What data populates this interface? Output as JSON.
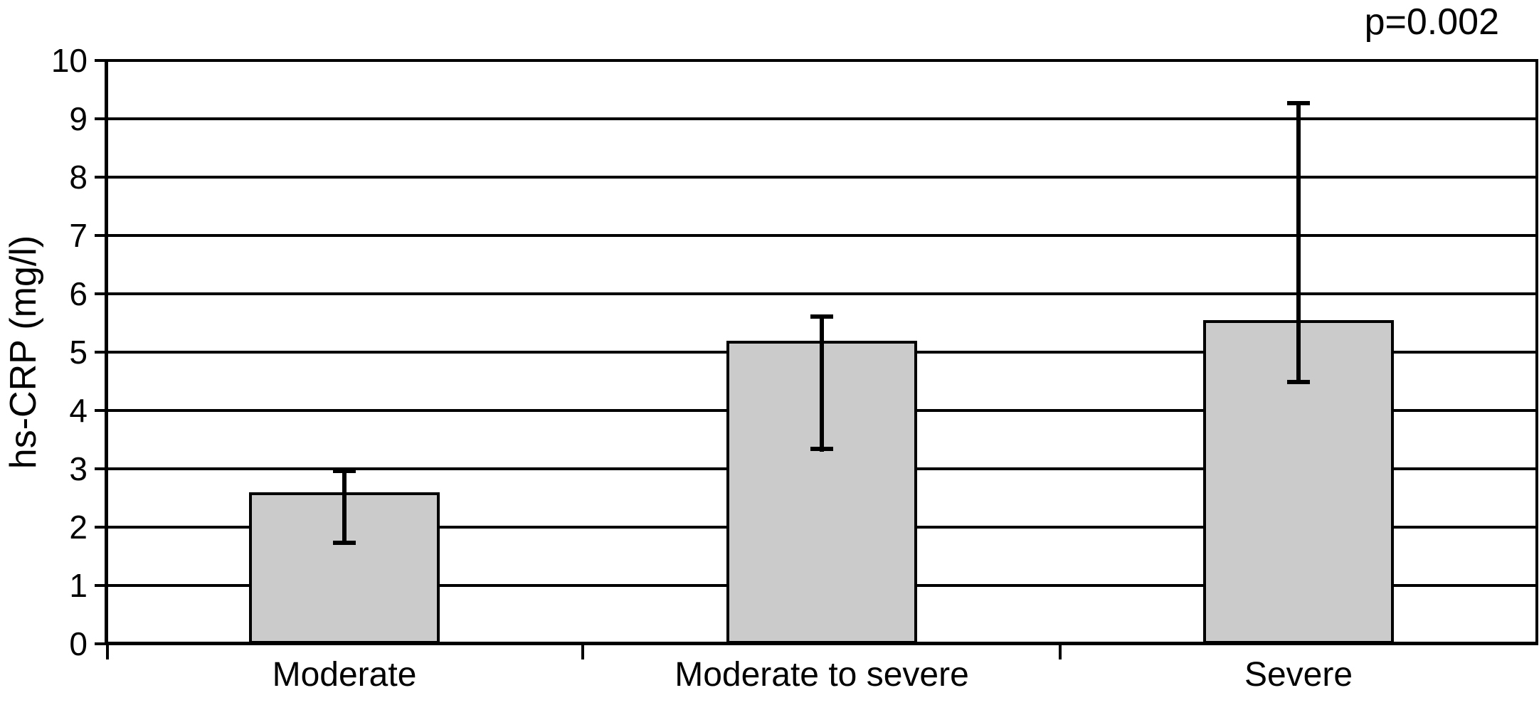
{
  "annotation": {
    "p_value": "p=0.002"
  },
  "chart_data": {
    "type": "bar",
    "title": "",
    "xlabel": "",
    "ylabel": "hs-CRP (mg/l)",
    "ylim": [
      0,
      10
    ],
    "ytick_step": 1,
    "yticks": [
      "0",
      "1",
      "2",
      "3",
      "4",
      "5",
      "6",
      "7",
      "8",
      "9",
      "10"
    ],
    "grid": true,
    "legend": "none",
    "annotation": "p=0.002",
    "categories": [
      "Moderate",
      "Moderate to severe",
      "Severe"
    ],
    "values": [
      2.6,
      5.2,
      5.55
    ],
    "error_low": [
      1.7,
      3.3,
      4.45
    ],
    "error_high": [
      3.0,
      5.65,
      9.3
    ],
    "bar_fill_color": "#cbcbcb",
    "bar_border_color": "#000000",
    "line_color": "#000000",
    "text_color": "#000000"
  }
}
